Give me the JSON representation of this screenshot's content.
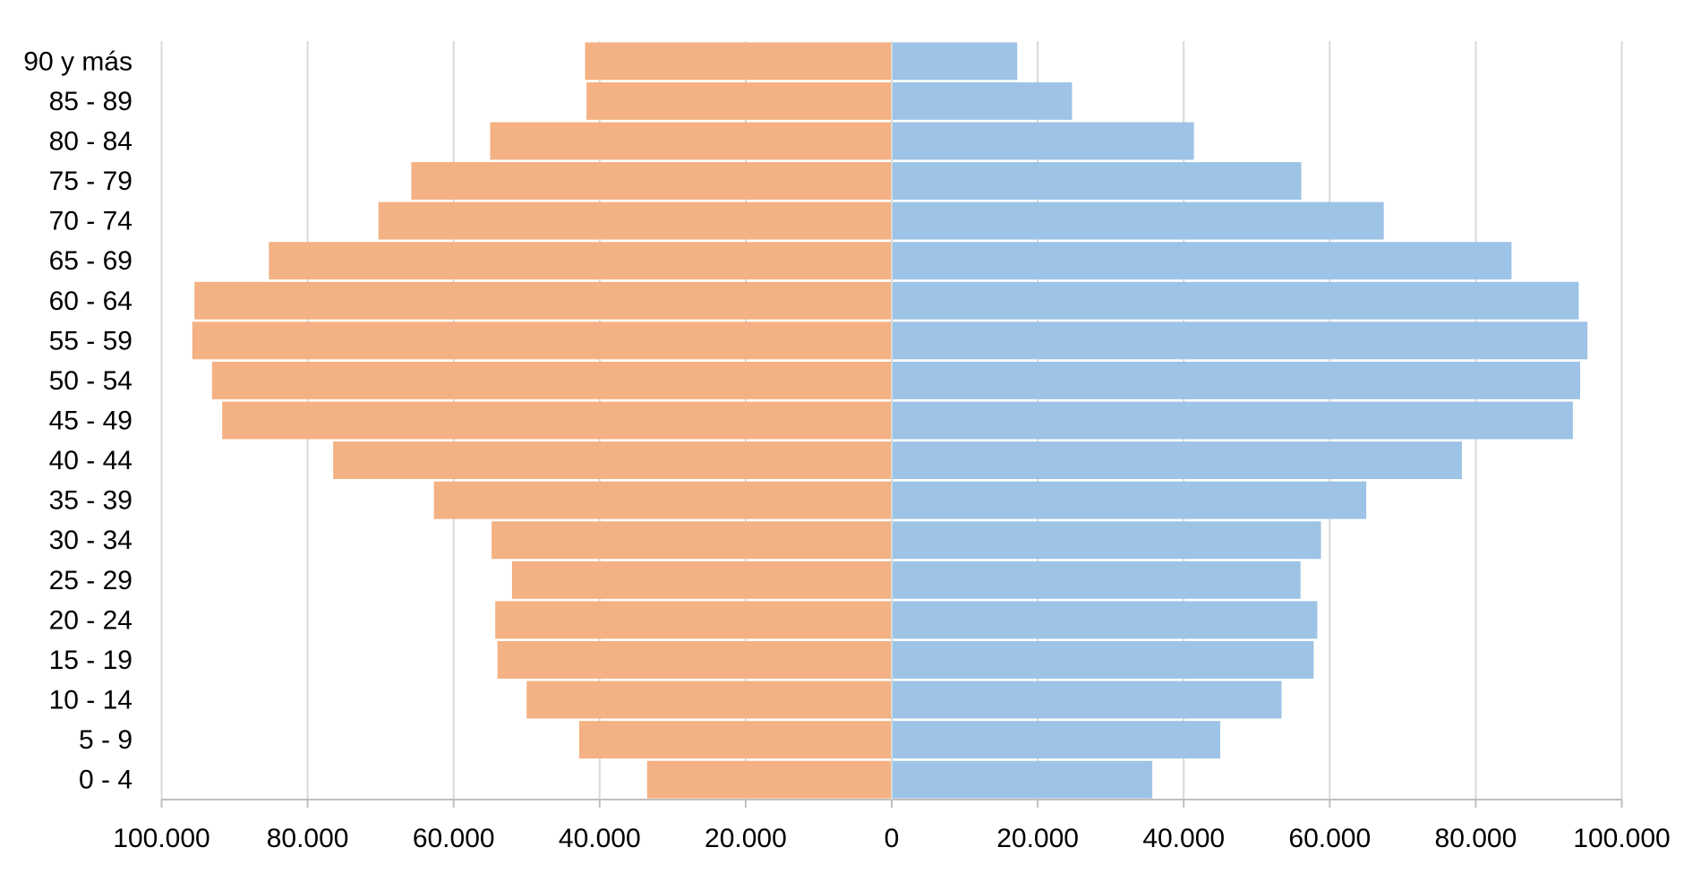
{
  "chart_data": {
    "type": "bar",
    "orientation": "horizontal",
    "layout": "population-pyramid",
    "categories": [
      "0 - 4",
      "5 - 9",
      "10 - 14",
      "15 - 19",
      "20 - 24",
      "25 - 29",
      "30 - 34",
      "35 - 39",
      "40 - 44",
      "45 - 49",
      "50 - 54",
      "55 - 59",
      "60 - 64",
      "65 - 69",
      "70 - 74",
      "75 - 79",
      "80 - 84",
      "85 - 89",
      "90 y más"
    ],
    "series": [
      {
        "side": "left",
        "color": "#F4B183",
        "values": [
          33500,
          42800,
          50000,
          54000,
          54300,
          52000,
          54800,
          62700,
          76500,
          91700,
          93100,
          95800,
          95500,
          85300,
          70300,
          65800,
          55000,
          41800,
          42000
        ]
      },
      {
        "side": "right",
        "color": "#9DC3E6",
        "values": [
          35700,
          45000,
          53400,
          57800,
          58300,
          56000,
          58800,
          65000,
          78100,
          93300,
          94300,
          95300,
          94100,
          84900,
          67400,
          56100,
          41400,
          24700,
          17200
        ]
      }
    ],
    "x_ticks": [
      "100.000",
      "80.000",
      "60.000",
      "40.000",
      "20.000",
      "0",
      "20.000",
      "40.000",
      "60.000",
      "80.000",
      "100.000"
    ],
    "xlim": [
      -100000,
      100000
    ],
    "grid": "vertical",
    "title": "",
    "xlabel": "",
    "ylabel": ""
  }
}
